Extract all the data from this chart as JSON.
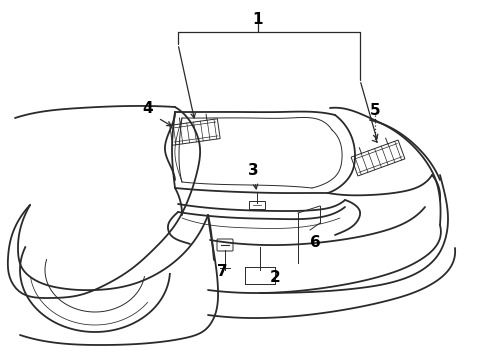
{
  "background_color": "#ffffff",
  "line_color": "#2a2a2a",
  "label_color": "#000000",
  "fig_width": 4.9,
  "fig_height": 3.6,
  "dpi": 100,
  "label_fontsize": 11,
  "label_fontweight": "bold",
  "lw_main": 1.3,
  "lw_thin": 0.7,
  "lw_leader": 0.9
}
